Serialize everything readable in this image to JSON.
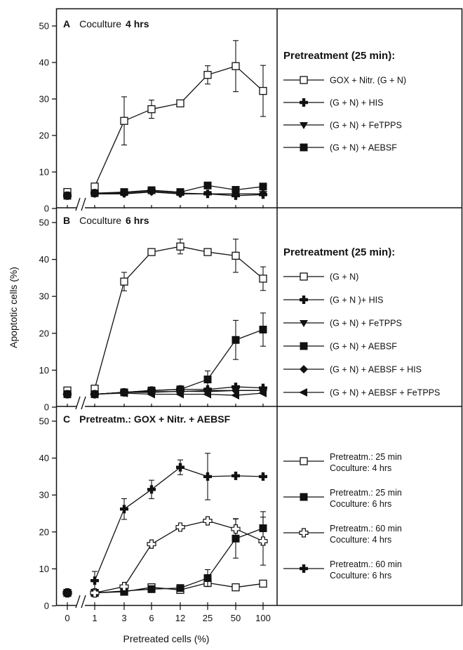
{
  "figure": {
    "xlabel": "Pretreated cells  (%)",
    "ylabel": "Apoptotic cells  (%)"
  },
  "chart_data": [
    {
      "type": "line",
      "panel": "A",
      "title_plain": "Coculture",
      "title_bold": "4 hrs",
      "categories": [
        "0",
        "1",
        "3",
        "6",
        "12",
        "25",
        "50",
        "100"
      ],
      "ylim": [
        0,
        50
      ],
      "yticks": [
        0,
        10,
        20,
        30,
        40,
        50
      ],
      "legend_title": "Pretreatment  (25 min):",
      "series": [
        {
          "name": "GOX + Nitr. (G + N)",
          "marker": "open-square",
          "values": [
            4.5,
            6,
            24,
            27.2,
            28.8,
            36.6,
            39,
            32.2
          ],
          "errors": [
            0,
            0,
            6.6,
            2.5,
            0,
            2.5,
            7,
            7
          ]
        },
        {
          "name": "(G + N) + HIS",
          "marker": "cross",
          "values": [
            3.5,
            4.2,
            4.2,
            4.8,
            4.2,
            4,
            3.5,
            3.8
          ]
        },
        {
          "name": "(G + N) + FeTPPS",
          "marker": "triangle-down",
          "values": [
            3.5,
            4,
            4,
            4.5,
            4,
            4,
            4,
            4
          ]
        },
        {
          "name": "(G + N) + AEBSF",
          "marker": "filled-square",
          "values": [
            3.5,
            4.2,
            4.5,
            5,
            4.5,
            6.3,
            5.1,
            6
          ]
        }
      ]
    },
    {
      "type": "line",
      "panel": "B",
      "title_plain": "Coculture",
      "title_bold": "6 hrs",
      "categories": [
        "0",
        "1",
        "3",
        "6",
        "12",
        "25",
        "50",
        "100"
      ],
      "ylim": [
        0,
        50
      ],
      "yticks": [
        0,
        10,
        20,
        30,
        40,
        50
      ],
      "legend_title": "Pretreatment  (25 min):",
      "series": [
        {
          "name": "(G + N)",
          "marker": "open-square",
          "values": [
            4.5,
            5,
            34,
            42,
            43.5,
            42,
            41,
            34.8
          ],
          "errors": [
            0,
            0,
            2.5,
            0,
            2,
            0,
            4.5,
            3.2
          ]
        },
        {
          "name": "(G + N )+ HIS",
          "marker": "cross",
          "values": [
            3.5,
            3.5,
            4,
            4.5,
            4.8,
            4.8,
            5.5,
            5.2
          ]
        },
        {
          "name": "(G + N) + FeTPPS",
          "marker": "triangle-down",
          "values": [
            3.5,
            3.5,
            4,
            4.2,
            4.2,
            4.5,
            4.5,
            4.5
          ]
        },
        {
          "name": "(G + N) + AEBSF",
          "marker": "filled-square",
          "values": [
            3.5,
            3.5,
            4,
            4.5,
            4.8,
            7.5,
            18.2,
            21
          ],
          "errors": [
            0,
            0,
            0,
            0,
            0,
            2.3,
            5.3,
            4.5
          ]
        },
        {
          "name": "(G + N) + AEBSF + HIS",
          "marker": "diamond",
          "values": [
            3.5,
            3.5,
            4,
            4,
            4.3,
            4.2,
            4.5,
            4.5
          ]
        },
        {
          "name": "(G + N) + AEBSF + FeTPPS",
          "marker": "triangle-left",
          "values": [
            3.5,
            3.5,
            3.8,
            3.5,
            3.5,
            3.5,
            3.2,
            3.8
          ]
        }
      ]
    },
    {
      "type": "line",
      "panel": "C",
      "title_plain": "",
      "title_bold": "Pretreatm.: GOX + Nitr. + AEBSF",
      "categories": [
        "0",
        "1",
        "3",
        "6",
        "12",
        "25",
        "50",
        "100"
      ],
      "ylim": [
        0,
        50
      ],
      "yticks": [
        0,
        10,
        20,
        30,
        40,
        50
      ],
      "series": [
        {
          "name": "Pretreatm.: 25 min",
          "name2": "Coculture: 4 hrs",
          "marker": "open-square",
          "values": [
            3.5,
            3.5,
            3.8,
            5,
            4.3,
            6.2,
            5,
            6
          ]
        },
        {
          "name": "Pretreatm.: 25 min",
          "name2": "Coculture: 6 hrs",
          "marker": "filled-square",
          "values": [
            3.5,
            3.5,
            4,
            4.5,
            4.8,
            7.5,
            18.2,
            21
          ],
          "errors": [
            0,
            0,
            0,
            0,
            0,
            2.3,
            5.3,
            4.5
          ]
        },
        {
          "name": "Pretreatm.: 60 min",
          "name2": "Coculture: 4 hrs",
          "marker": "open-cross",
          "values": [
            3.5,
            3.5,
            5.2,
            16.7,
            21.3,
            23,
            20.8,
            17.5
          ],
          "errors": [
            0,
            0,
            0,
            0,
            0,
            0,
            2.8,
            6.5
          ]
        },
        {
          "name": "Pretreatm.: 60 min",
          "name2": "Coculture: 6 hrs",
          "marker": "cross",
          "values": [
            3.5,
            6.8,
            26.2,
            31.5,
            37.5,
            35,
            35.2,
            35
          ],
          "errors": [
            0,
            2.5,
            2.8,
            2.5,
            2,
            6.3,
            0,
            0
          ]
        }
      ]
    }
  ]
}
